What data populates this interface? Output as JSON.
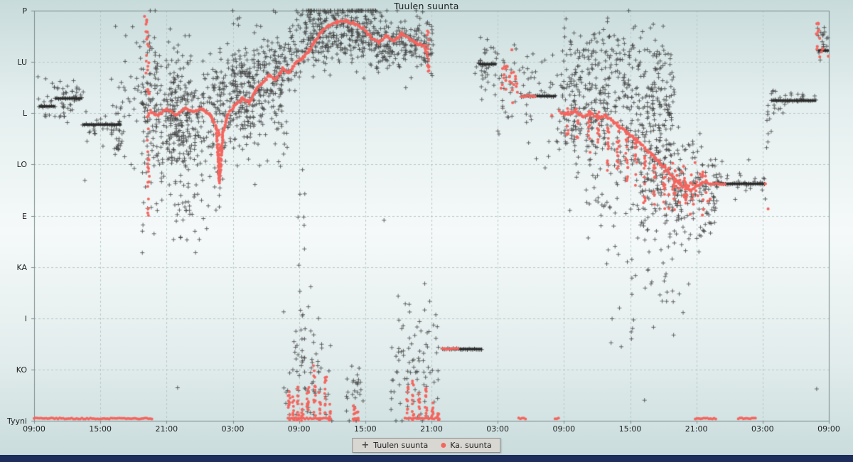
{
  "page": {
    "title": "Tuulen suunta"
  },
  "chart_data": {
    "type": "scatter",
    "title": "Tuulen suunta",
    "seed": 7,
    "x_axis": {
      "tick_labels": [
        "09:00",
        "15:00",
        "21:00",
        "03:00",
        "09:00",
        "15:00",
        "21:00",
        "03:00",
        "09:00",
        "15:00",
        "21:00",
        "03:00",
        "09:00"
      ],
      "hours_span": 72,
      "tick_interval_hours": 6
    },
    "y_axis": {
      "tick_labels": [
        "P",
        "LU",
        "L",
        "LO",
        "E",
        "KA",
        "I",
        "KO",
        "Tyyni"
      ],
      "tick_values_deg": [
        360,
        315,
        270,
        225,
        180,
        135,
        90,
        45,
        0
      ]
    },
    "legend": {
      "items": [
        {
          "label": "Tuulen suunta",
          "marker": "plus",
          "color": "#4a4a4a"
        },
        {
          "label": "Ka. suunta",
          "marker": "dot",
          "color": "#f4655e"
        }
      ]
    },
    "colors": {
      "grid": "#b7c7c7",
      "axis": "#7a8a8a",
      "wind": "rgba(68,68,68,0.82)",
      "wind_dense": "#3b3b3b",
      "avg": "#f4655e",
      "bottom_bar": "#1d2d5c"
    },
    "series": {
      "wind": {
        "name": "Tuulen suunta",
        "clusters": [
          [
            0.3,
            4.6,
            281,
            281,
            9,
            60
          ],
          [
            4.5,
            8.0,
            260,
            260,
            9,
            35
          ],
          [
            7.0,
            11.0,
            272,
            298,
            34,
            55
          ],
          [
            9.8,
            11.2,
            268,
            264,
            48,
            85
          ],
          [
            11.0,
            14.2,
            264,
            266,
            26,
            150
          ],
          [
            12.0,
            20.0,
            272,
            278,
            25,
            360
          ],
          [
            11.5,
            17.2,
            206,
            210,
            16,
            50
          ],
          [
            12.5,
            15.5,
            162,
            162,
            9,
            9
          ],
          [
            18.0,
            24.5,
            286,
            324,
            19,
            300
          ],
          [
            24.5,
            31.0,
            342,
            343,
            14,
            380
          ],
          [
            31.0,
            36.2,
            331,
            330,
            12,
            220
          ],
          [
            20.0,
            23.2,
            252,
            260,
            22,
            36
          ],
          [
            23.8,
            24.6,
            150,
            150,
            52,
            13
          ],
          [
            22.6,
            27.0,
            44,
            50,
            25,
            70
          ],
          [
            28.3,
            29.9,
            26,
            26,
            14,
            26
          ],
          [
            32.3,
            37.0,
            46,
            50,
            27,
            90
          ],
          [
            39.8,
            42.0,
            310,
            308,
            13,
            38
          ],
          [
            42.0,
            47.0,
            286,
            294,
            19,
            55
          ],
          [
            47.3,
            58.0,
            278,
            272,
            29,
            470
          ],
          [
            48.0,
            57.0,
            322,
            320,
            10,
            85
          ],
          [
            50.0,
            58.5,
            204,
            196,
            21,
            85
          ],
          [
            52.0,
            59.2,
            136,
            120,
            28,
            40
          ],
          [
            55.0,
            62.0,
            228,
            196,
            21,
            210
          ],
          [
            58.0,
            61.5,
            172,
            168,
            11,
            22
          ],
          [
            61.3,
            66.3,
            211,
            208,
            9,
            35
          ],
          [
            66.3,
            67.2,
            262,
            262,
            16,
            10
          ],
          [
            66.8,
            70.9,
            281,
            281,
            6,
            26
          ],
          [
            70.9,
            72.0,
            331,
            333,
            11,
            18
          ],
          [
            7.3,
            7.9,
            240,
            240,
            4,
            10
          ]
        ],
        "runs": [
          [
            0.45,
            1.9,
            276
          ],
          [
            1.9,
            4.35,
            283
          ],
          [
            4.4,
            7.9,
            260
          ],
          [
            37.0,
            40.6,
            63
          ],
          [
            40.3,
            41.9,
            313
          ],
          [
            44.15,
            47.3,
            285
          ],
          [
            61.5,
            66.3,
            208
          ],
          [
            66.8,
            70.85,
            281
          ],
          [
            71.05,
            72.0,
            325
          ]
        ],
        "singles": [
          [
            4.6,
            211
          ],
          [
            13.0,
            29
          ],
          [
            31.7,
            176
          ],
          [
            35.4,
            17
          ],
          [
            53.2,
            65
          ],
          [
            55.3,
            18
          ],
          [
            70.9,
            28
          ],
          [
            24.3,
            92
          ],
          [
            59.3,
            120
          ],
          [
            8.3,
            338
          ],
          [
            46.6,
            232
          ],
          [
            66.5,
            252
          ],
          [
            43.5,
            330
          ],
          [
            45.2,
            322
          ],
          [
            46.0,
            315
          ],
          [
            45.5,
            230
          ],
          [
            46.3,
            222
          ],
          [
            44.8,
            244
          ],
          [
            56.8,
            150
          ],
          [
            57.8,
            142
          ],
          [
            58.8,
            95
          ],
          [
            54.1,
            78
          ]
        ]
      },
      "avg": {
        "name": "Ka. suunta",
        "path_segments": [
          [
            [
              10.5,
              272
            ],
            [
              11.2,
              268
            ],
            [
              12.0,
              273
            ],
            [
              12.8,
              269
            ],
            [
              13.6,
              274
            ],
            [
              14.4,
              271
            ],
            [
              15.2,
              274
            ],
            [
              16.0,
              268
            ],
            [
              16.5,
              258
            ],
            [
              16.8,
              210
            ],
            [
              17.1,
              252
            ],
            [
              17.5,
              268
            ],
            [
              18.2,
              277
            ],
            [
              18.9,
              283
            ],
            [
              19.5,
              279
            ],
            [
              20.1,
              290
            ],
            [
              20.7,
              297
            ],
            [
              21.3,
              303
            ],
            [
              21.9,
              299
            ],
            [
              22.5,
              309
            ],
            [
              23.1,
              306
            ],
            [
              23.7,
              314
            ],
            [
              24.3,
              318
            ],
            [
              24.9,
              325
            ],
            [
              25.5,
              334
            ],
            [
              26.1,
              342
            ],
            [
              26.7,
              347
            ],
            [
              27.4,
              350
            ],
            [
              28.2,
              351
            ],
            [
              29.0,
              349
            ],
            [
              29.8,
              344
            ],
            [
              30.5,
              337
            ],
            [
              31.2,
              332
            ],
            [
              31.9,
              338
            ],
            [
              32.6,
              333
            ],
            [
              33.3,
              340
            ],
            [
              34.0,
              336
            ],
            [
              34.7,
              331
            ],
            [
              35.3,
              329
            ],
            [
              35.7,
              320
            ]
          ],
          [
            [
              47.6,
              271
            ],
            [
              48.3,
              269
            ],
            [
              49.0,
              272
            ],
            [
              49.7,
              267
            ],
            [
              50.4,
              270
            ],
            [
              51.1,
              266
            ],
            [
              51.8,
              268
            ],
            [
              52.5,
              262
            ],
            [
              53.2,
              257
            ],
            [
              53.9,
              251
            ],
            [
              54.6,
              246
            ],
            [
              55.3,
              240
            ],
            [
              56.0,
              233
            ],
            [
              56.7,
              226
            ],
            [
              57.4,
              219
            ],
            [
              58.1,
              212
            ],
            [
              58.8,
              206
            ],
            [
              59.5,
              202
            ],
            [
              60.2,
              207
            ],
            [
              60.9,
              210
            ],
            [
              61.4,
              208
            ]
          ]
        ],
        "columns": [
          [
            10.35,
            180,
            348,
            34
          ],
          [
            10.2,
            300,
            352,
            10
          ],
          [
            16.8,
            208,
            262,
            13
          ],
          [
            23.1,
            0,
            30,
            12
          ],
          [
            23.5,
            0,
            22,
            10
          ],
          [
            23.9,
            0,
            35,
            12
          ],
          [
            24.3,
            0,
            18,
            8
          ],
          [
            24.8,
            0,
            30,
            12
          ],
          [
            25.4,
            0,
            55,
            14
          ],
          [
            25.9,
            0,
            25,
            10
          ],
          [
            26.4,
            0,
            40,
            12
          ],
          [
            26.8,
            0,
            15,
            6
          ],
          [
            29.0,
            0,
            14,
            8
          ],
          [
            29.3,
            0,
            8,
            5
          ],
          [
            33.8,
            0,
            30,
            10
          ],
          [
            34.3,
            0,
            45,
            12
          ],
          [
            34.9,
            0,
            25,
            10
          ],
          [
            35.5,
            0,
            35,
            12
          ],
          [
            36.1,
            0,
            20,
            8
          ],
          [
            36.6,
            0,
            12,
            6
          ],
          [
            35.7,
            305,
            345,
            14
          ],
          [
            48.3,
            250,
            275,
            8
          ],
          [
            49.2,
            245,
            274,
            8
          ],
          [
            50.3,
            235,
            272,
            12
          ],
          [
            51.1,
            240,
            273,
            12
          ],
          [
            52.0,
            218,
            268,
            14
          ],
          [
            52.9,
            208,
            262,
            14
          ],
          [
            53.7,
            200,
            256,
            14
          ],
          [
            54.5,
            196,
            248,
            12
          ],
          [
            55.3,
            190,
            240,
            12
          ],
          [
            56.2,
            188,
            232,
            12
          ],
          [
            57.1,
            182,
            228,
            12
          ],
          [
            58.0,
            180,
            222,
            10
          ],
          [
            59.0,
            184,
            218,
            10
          ]
        ],
        "clusters": [
          [
            42.2,
            43.9,
            307,
            294,
            8,
            26
          ],
          [
            70.85,
            71.6,
            340,
            334,
            9,
            14
          ],
          [
            57.5,
            61.3,
            208,
            204,
            11,
            55
          ]
        ],
        "runs": [
          [
            37.0,
            38.4,
            63
          ],
          [
            44.15,
            45.4,
            285
          ],
          [
            61.5,
            62.6,
            208
          ]
        ],
        "bottom_runs": [
          [
            0.0,
            10.8
          ],
          [
            23.0,
            26.9
          ],
          [
            28.9,
            29.5
          ],
          [
            33.6,
            36.7
          ],
          [
            43.9,
            44.6
          ],
          [
            47.2,
            47.6
          ],
          [
            59.9,
            61.8
          ],
          [
            63.8,
            65.4
          ]
        ],
        "singles": [
          [
            66.5,
            186
          ],
          [
            71.95,
            320
          ],
          [
            66.25,
            208
          ],
          [
            46.9,
            268
          ],
          [
            10.0,
            355
          ]
        ]
      }
    }
  }
}
